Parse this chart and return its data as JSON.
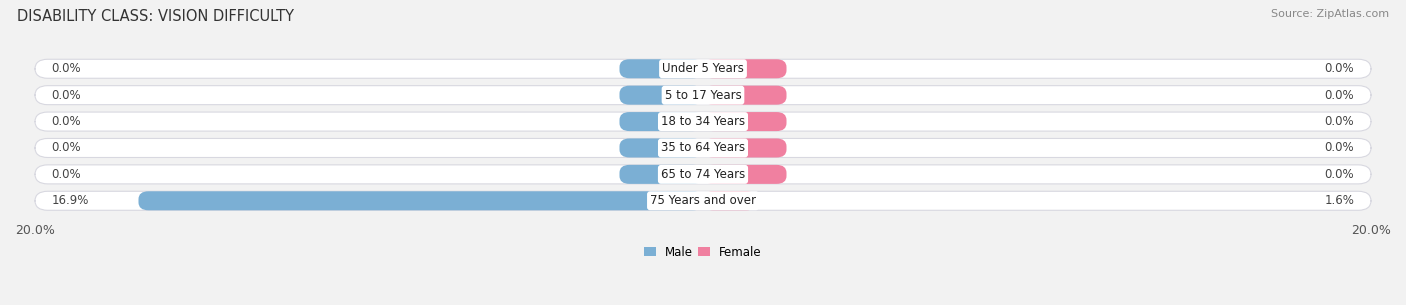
{
  "title": "DISABILITY CLASS: VISION DIFFICULTY",
  "source": "Source: ZipAtlas.com",
  "categories": [
    "Under 5 Years",
    "5 to 17 Years",
    "18 to 34 Years",
    "35 to 64 Years",
    "65 to 74 Years",
    "75 Years and over"
  ],
  "male_values": [
    0.0,
    0.0,
    0.0,
    0.0,
    0.0,
    16.9
  ],
  "female_values": [
    0.0,
    0.0,
    0.0,
    0.0,
    0.0,
    1.6
  ],
  "male_color": "#7bafd4",
  "female_color": "#f080a0",
  "male_label": "Male",
  "female_label": "Female",
  "default_bar_pct": 2.5,
  "xlim": 20.0,
  "bar_height": 0.72,
  "background_color": "#f2f2f2",
  "bar_bg_color": "#ffffff",
  "bar_border_color": "#d8d8e0",
  "title_fontsize": 10.5,
  "label_fontsize": 8.5,
  "value_fontsize": 8.5,
  "tick_fontsize": 9,
  "source_fontsize": 8
}
